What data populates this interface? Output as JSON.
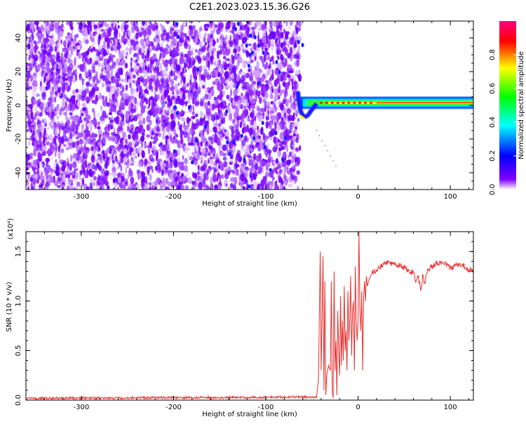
{
  "figure": {
    "title": "C2E1.2023.023.15.36.G26"
  },
  "chart_data": [
    {
      "type": "heatmap",
      "xlabel": "Height of straight line (km)",
      "ylabel": "Frequency (Hz)",
      "xlim": [
        -360,
        125
      ],
      "ylim": [
        -50,
        50
      ],
      "x_ticks": [
        -300,
        -200,
        -100,
        0,
        100
      ],
      "x_tick_labels": [
        "-300",
        "-200",
        "-100",
        "0",
        "100"
      ],
      "y_ticks": [
        -40,
        -20,
        0,
        20,
        40
      ],
      "y_tick_labels": [
        "-40",
        "-20",
        "0",
        "20",
        "40"
      ],
      "colorbar": {
        "label": "Normalized spectral amplitude",
        "range": [
          0,
          1
        ],
        "ticks": [
          0.0,
          0.2,
          0.4,
          0.6,
          0.8
        ],
        "tick_labels": [
          "0.0",
          "0.2",
          "0.4",
          "0.6",
          "0.8"
        ],
        "colormap": [
          "#ffffff",
          "#7f00ff",
          "#0000ff",
          "#00ffff",
          "#00ff00",
          "#ffff00",
          "#ff0000",
          "#ff007f"
        ]
      },
      "regions": [
        {
          "name": "noise",
          "x_range": [
            -360,
            -63
          ],
          "freq_range": [
            -50,
            50
          ],
          "amplitude": "low (0.0-0.15)",
          "color": "#7f00ff"
        },
        {
          "name": "signal",
          "x_range": [
            -63,
            125
          ],
          "freq_center": 1.5,
          "freq_width": 4,
          "amplitude": "high (0.5-1.0)"
        }
      ],
      "grid": false
    },
    {
      "type": "line",
      "xlabel": "Height of straight line (km)",
      "ylabel": "SNR (10 * v/v)",
      "y_scale_label": "(x10⁴)",
      "xlim": [
        -360,
        125
      ],
      "ylim": [
        0,
        1.7
      ],
      "x_ticks": [
        -300,
        -200,
        -100,
        0,
        100
      ],
      "x_tick_labels": [
        "-300",
        "-200",
        "-100",
        "0",
        "100"
      ],
      "y_ticks": [
        0.0,
        0.5,
        1.0,
        1.5
      ],
      "y_tick_labels": [
        "0.0",
        "0.5",
        "1.0",
        "1.5"
      ],
      "series": [
        {
          "color": "#e8302f",
          "x": [
            -360,
            -300,
            -200,
            -150,
            -100,
            -60,
            -45,
            -43,
            -41,
            -40,
            -38,
            -37,
            -36,
            -35,
            -34,
            -32,
            -30,
            -29,
            -28,
            -27,
            -26,
            -25,
            -24,
            -23,
            -22,
            -21,
            -20,
            -19,
            -18,
            -17,
            -16,
            -15,
            -14,
            -13,
            -12,
            -11,
            -10,
            -9,
            -8,
            -7,
            -6,
            -5,
            -4,
            -3,
            -2,
            -1,
            0,
            1,
            2,
            3,
            4,
            5,
            6,
            7,
            8,
            9,
            10,
            12,
            15,
            18,
            20,
            25,
            30,
            35,
            40,
            45,
            50,
            55,
            60,
            63,
            65,
            68,
            70,
            72,
            75,
            78,
            80,
            85,
            90,
            95,
            100,
            105,
            110,
            115,
            120,
            125
          ],
          "y": [
            0.02,
            0.02,
            0.025,
            0.025,
            0.03,
            0.03,
            0.03,
            0.2,
            1.5,
            0.3,
            1.45,
            0.1,
            1.2,
            0.05,
            0.25,
            0.35,
            0.3,
            1.2,
            0.1,
            0.02,
            1.3,
            0.3,
            0.6,
            0.05,
            0.9,
            0.5,
            0.25,
            1.05,
            0.35,
            0.8,
            0.4,
            1.15,
            0.5,
            0.7,
            0.3,
            1.1,
            0.6,
            0.8,
            1.25,
            0.45,
            0.9,
            1.0,
            0.3,
            1.35,
            0.8,
            0.6,
            0.8,
            1.7,
            0.9,
            0.7,
            1.1,
            0.3,
            1.05,
            1.2,
            1.0,
            1.25,
            1.15,
            1.22,
            1.28,
            1.3,
            1.32,
            1.35,
            1.38,
            1.38,
            1.37,
            1.36,
            1.34,
            1.3,
            1.28,
            1.2,
            1.26,
            1.1,
            1.25,
            1.18,
            1.3,
            1.32,
            1.35,
            1.38,
            1.38,
            1.37,
            1.33,
            1.35,
            1.38,
            1.36,
            1.31,
            1.32
          ]
        }
      ],
      "grid": false
    }
  ]
}
